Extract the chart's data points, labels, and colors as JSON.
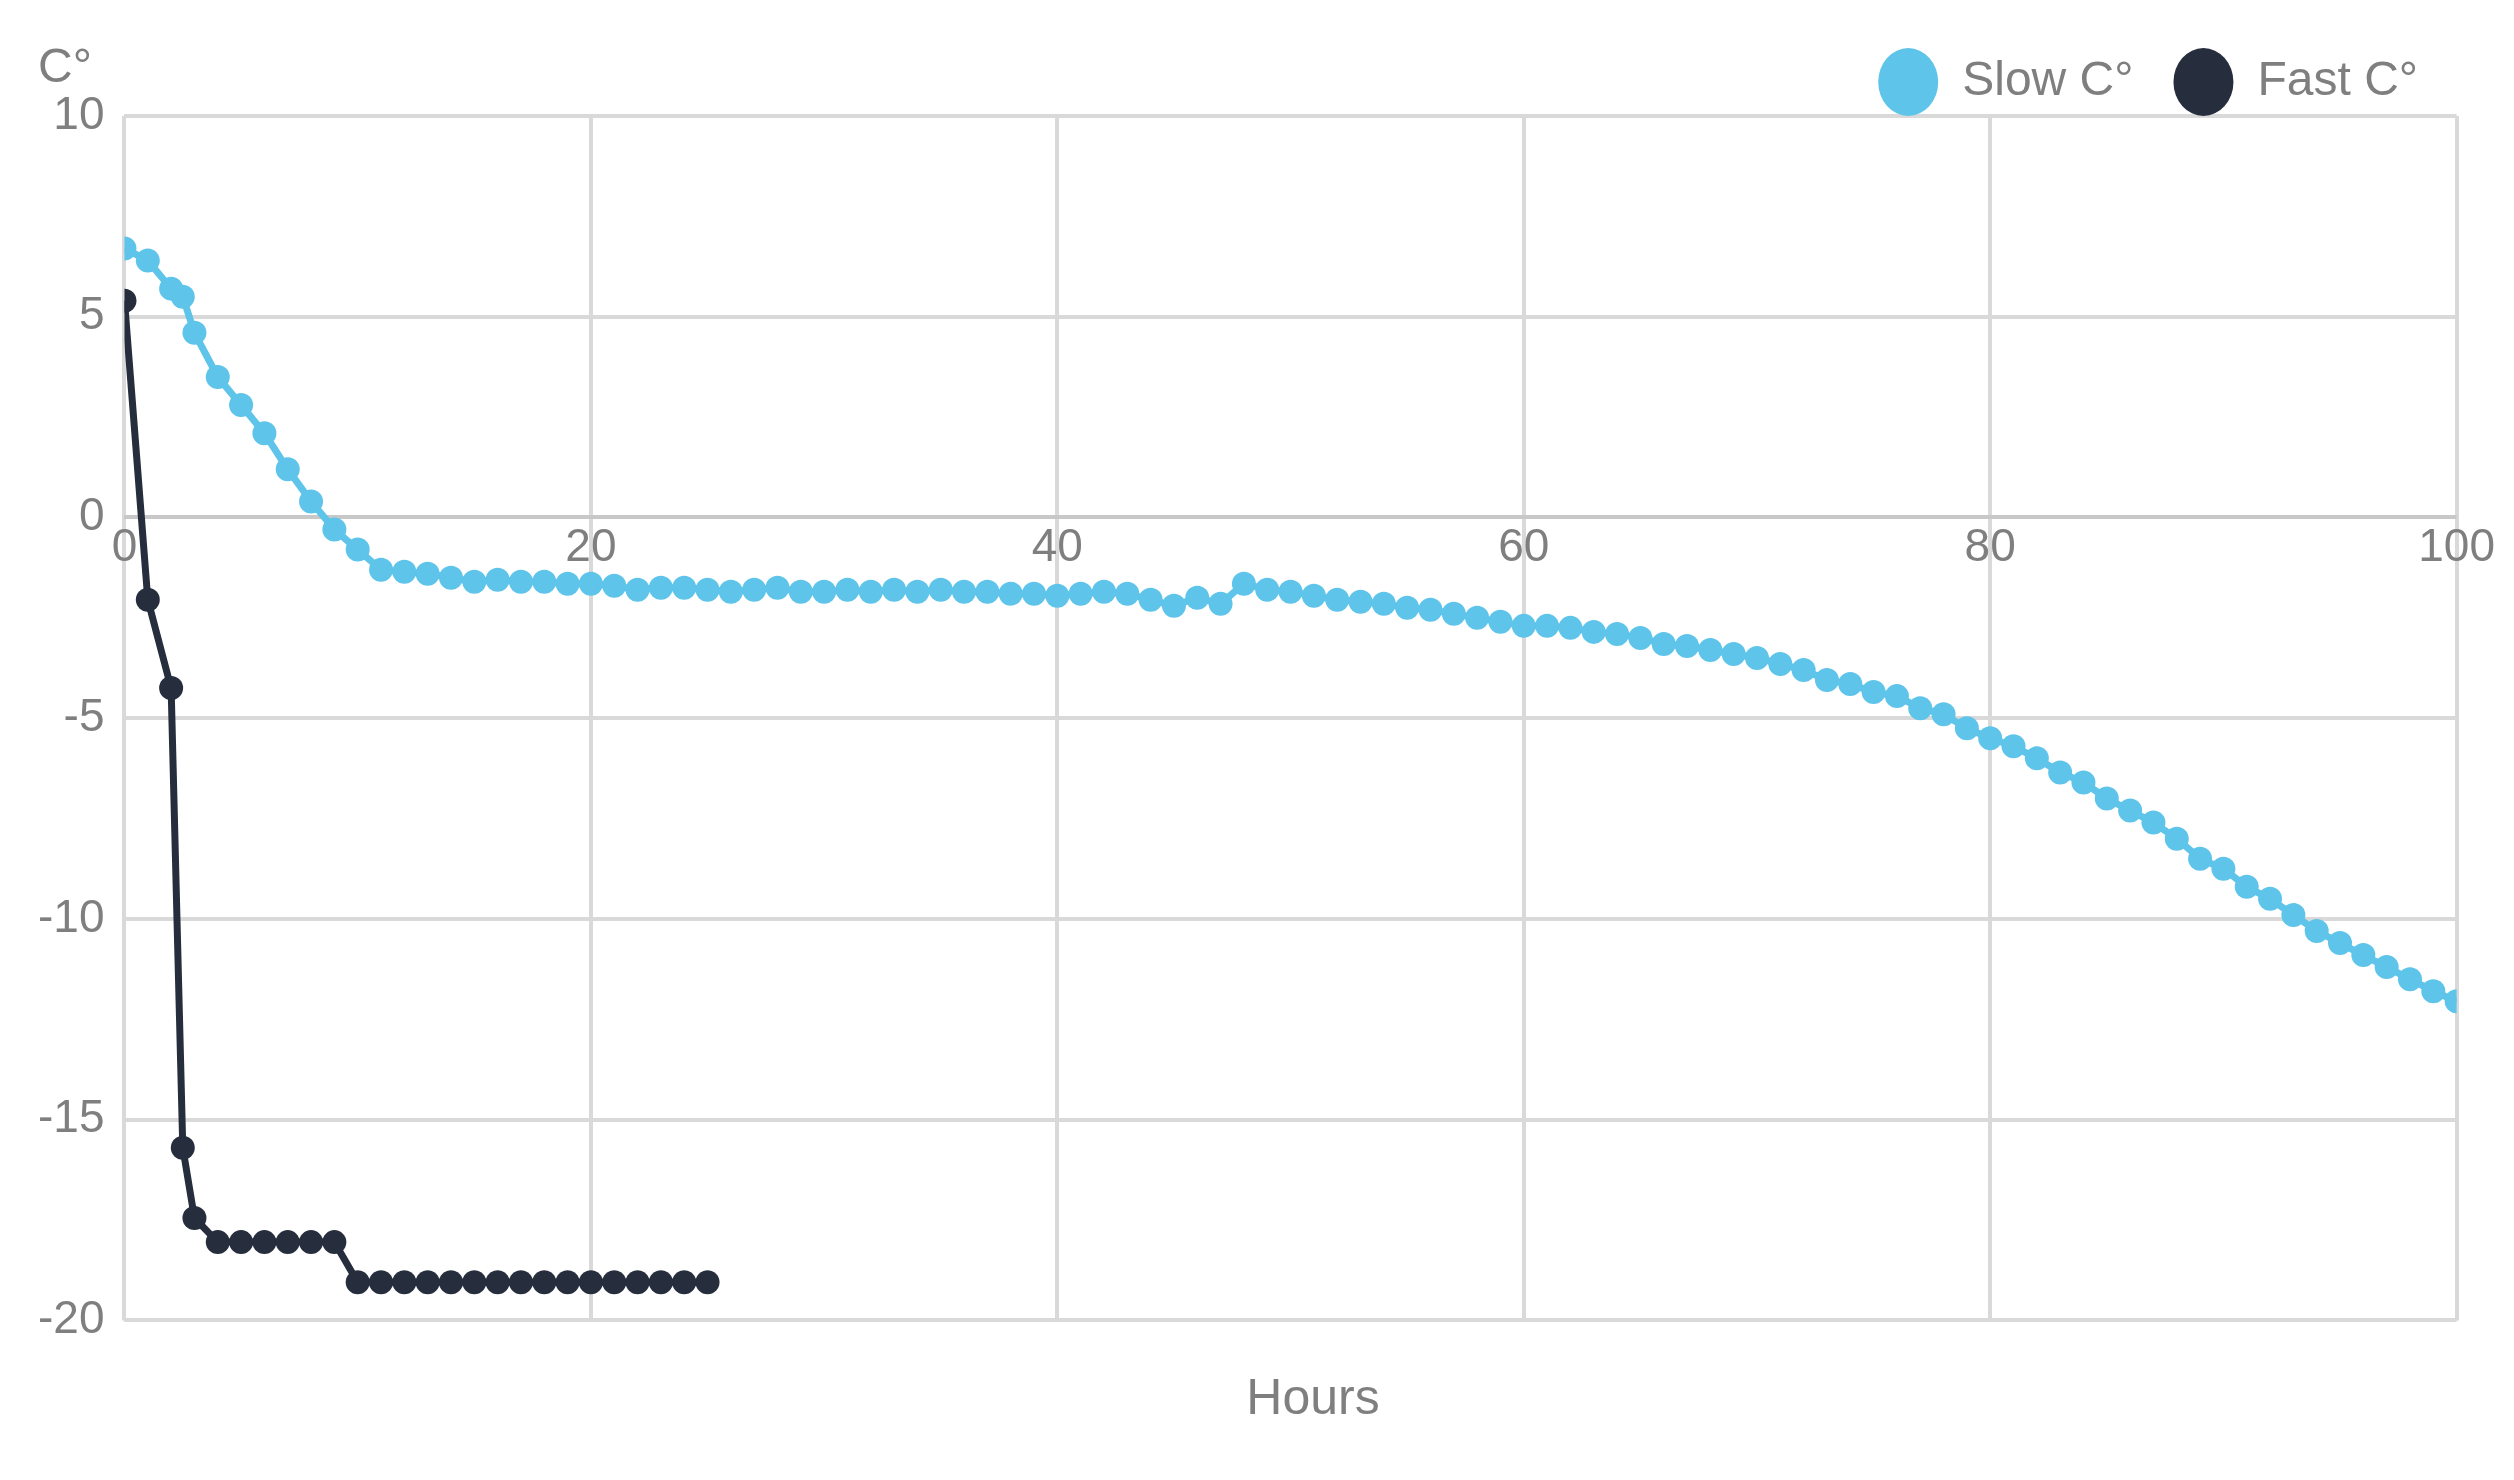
{
  "chart_data": {
    "type": "line",
    "ylabel": "C°",
    "xlabel": "Hours",
    "xlim": [
      0,
      100
    ],
    "ylim": [
      -20,
      10
    ],
    "xticks": [
      0,
      20,
      40,
      60,
      80,
      100
    ],
    "yticks": [
      -20,
      -15,
      -10,
      -5,
      0,
      5,
      10
    ],
    "grid": true,
    "legend": "top right",
    "marker": "circle",
    "line_style": "solid",
    "series": [
      {
        "name": "Slow C°",
        "color": "#5ec4ea",
        "x": [
          0,
          1,
          2,
          2.5,
          3,
          4,
          5,
          6,
          7,
          8,
          9,
          10,
          11,
          12,
          13,
          14,
          15,
          16,
          17,
          18,
          19,
          20,
          21,
          22,
          23,
          24,
          25,
          26,
          27,
          28,
          29,
          30,
          31,
          32,
          33,
          34,
          35,
          36,
          37,
          38,
          39,
          40,
          41,
          42,
          43,
          44,
          45,
          46,
          47,
          48,
          49,
          50,
          51,
          52,
          53,
          54,
          55,
          56,
          57,
          58,
          59,
          60,
          61,
          62,
          63,
          64,
          65,
          66,
          67,
          68,
          69,
          70,
          71,
          72,
          73,
          74,
          75,
          76,
          77,
          78,
          79,
          80,
          81,
          82,
          83,
          84,
          85,
          86,
          87,
          88,
          89,
          90,
          91,
          92,
          93,
          94,
          95,
          96,
          97,
          98,
          99,
          100
        ],
        "values": [
          6.7,
          6.4,
          5.7,
          5.5,
          4.6,
          3.5,
          2.8,
          2.1,
          1.2,
          0.4,
          -0.3,
          -0.8,
          -1.3,
          -1.35,
          -1.4,
          -1.5,
          -1.6,
          -1.55,
          -1.6,
          -1.6,
          -1.65,
          -1.65,
          -1.7,
          -1.8,
          -1.75,
          -1.75,
          -1.8,
          -1.85,
          -1.8,
          -1.75,
          -1.85,
          -1.85,
          -1.8,
          -1.85,
          -1.8,
          -1.85,
          -1.8,
          -1.85,
          -1.85,
          -1.9,
          -1.9,
          -1.95,
          -1.9,
          -1.85,
          -1.9,
          -2.05,
          -2.2,
          -2.0,
          -2.15,
          -1.65,
          -1.8,
          -1.85,
          -1.95,
          -2.05,
          -2.1,
          -2.15,
          -2.25,
          -2.3,
          -2.4,
          -2.5,
          -2.6,
          -2.7,
          -2.7,
          -2.75,
          -2.85,
          -2.9,
          -3.0,
          -3.15,
          -3.2,
          -3.3,
          -3.4,
          -3.5,
          -3.65,
          -3.8,
          -4.05,
          -4.15,
          -4.35,
          -4.45,
          -4.75,
          -4.9,
          -5.25,
          -5.5,
          -5.7,
          -6.0,
          -6.35,
          -6.6,
          -7.0,
          -7.3,
          -7.6,
          -8.0,
          -8.5,
          -8.75,
          -9.2,
          -9.5,
          -9.9,
          -10.3,
          -10.6,
          -10.9,
          -11.2,
          -11.5,
          -11.8,
          -12.05
        ]
      },
      {
        "name": "Fast C°",
        "color": "#262d3d",
        "x": [
          0,
          1,
          2,
          2.5,
          3,
          4,
          5,
          6,
          7,
          8,
          9,
          10,
          11,
          12,
          13,
          14,
          15,
          16,
          17,
          18,
          19,
          20,
          21,
          22,
          23,
          24,
          25
        ],
        "values": [
          5.4,
          -2.05,
          -4.25,
          -15.7,
          -17.45,
          -18.05,
          -18.05,
          -18.05,
          -18.05,
          -18.05,
          -18.05,
          -19.05,
          -19.05,
          -19.05,
          -19.05,
          -19.05,
          -19.05,
          -19.05,
          -19.05,
          -19.05,
          -19.05,
          -19.05,
          -19.05,
          -19.05,
          -19.05,
          -19.05,
          -19.05
        ]
      }
    ]
  }
}
